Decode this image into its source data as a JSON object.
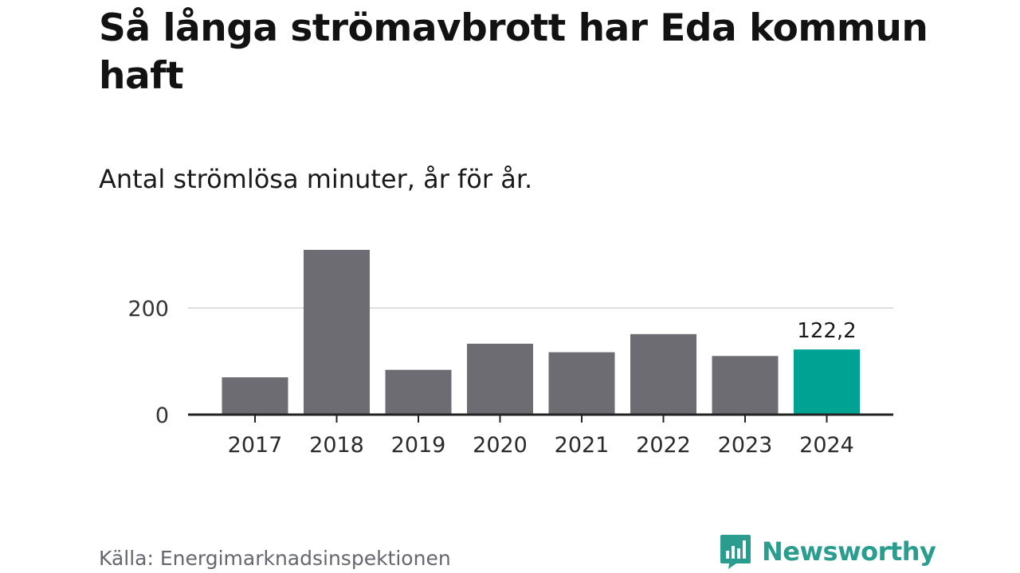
{
  "header": {
    "title": "Så långa strömavbrott har Eda kommun haft",
    "subtitle": "Antal strömlösa minuter, år för år."
  },
  "footer": {
    "source": "Källa: Energimarknadsinspektionen",
    "brand": "Newsworthy",
    "brand_icon": "chart-bubble-icon"
  },
  "colors": {
    "bar": "#6d6c72",
    "highlight": "#00a294",
    "gridline": "#dcdcdc",
    "axis": "#222222",
    "brand": "#2a9d8f"
  },
  "chart_data": {
    "type": "bar",
    "categories": [
      "2017",
      "2018",
      "2019",
      "2020",
      "2021",
      "2022",
      "2023",
      "2024"
    ],
    "values": [
      70,
      309,
      84,
      133,
      117,
      151,
      110,
      122.2
    ],
    "highlight_index": 7,
    "data_labels": [
      {
        "index": 7,
        "text": "122,2"
      }
    ],
    "yticks": [
      0,
      200
    ],
    "ylim": [
      0,
      320
    ],
    "grid": true,
    "title": "Så långa strömavbrott har Eda kommun haft",
    "subtitle": "Antal strömlösa minuter, år för år.",
    "xlabel": "",
    "ylabel": ""
  }
}
